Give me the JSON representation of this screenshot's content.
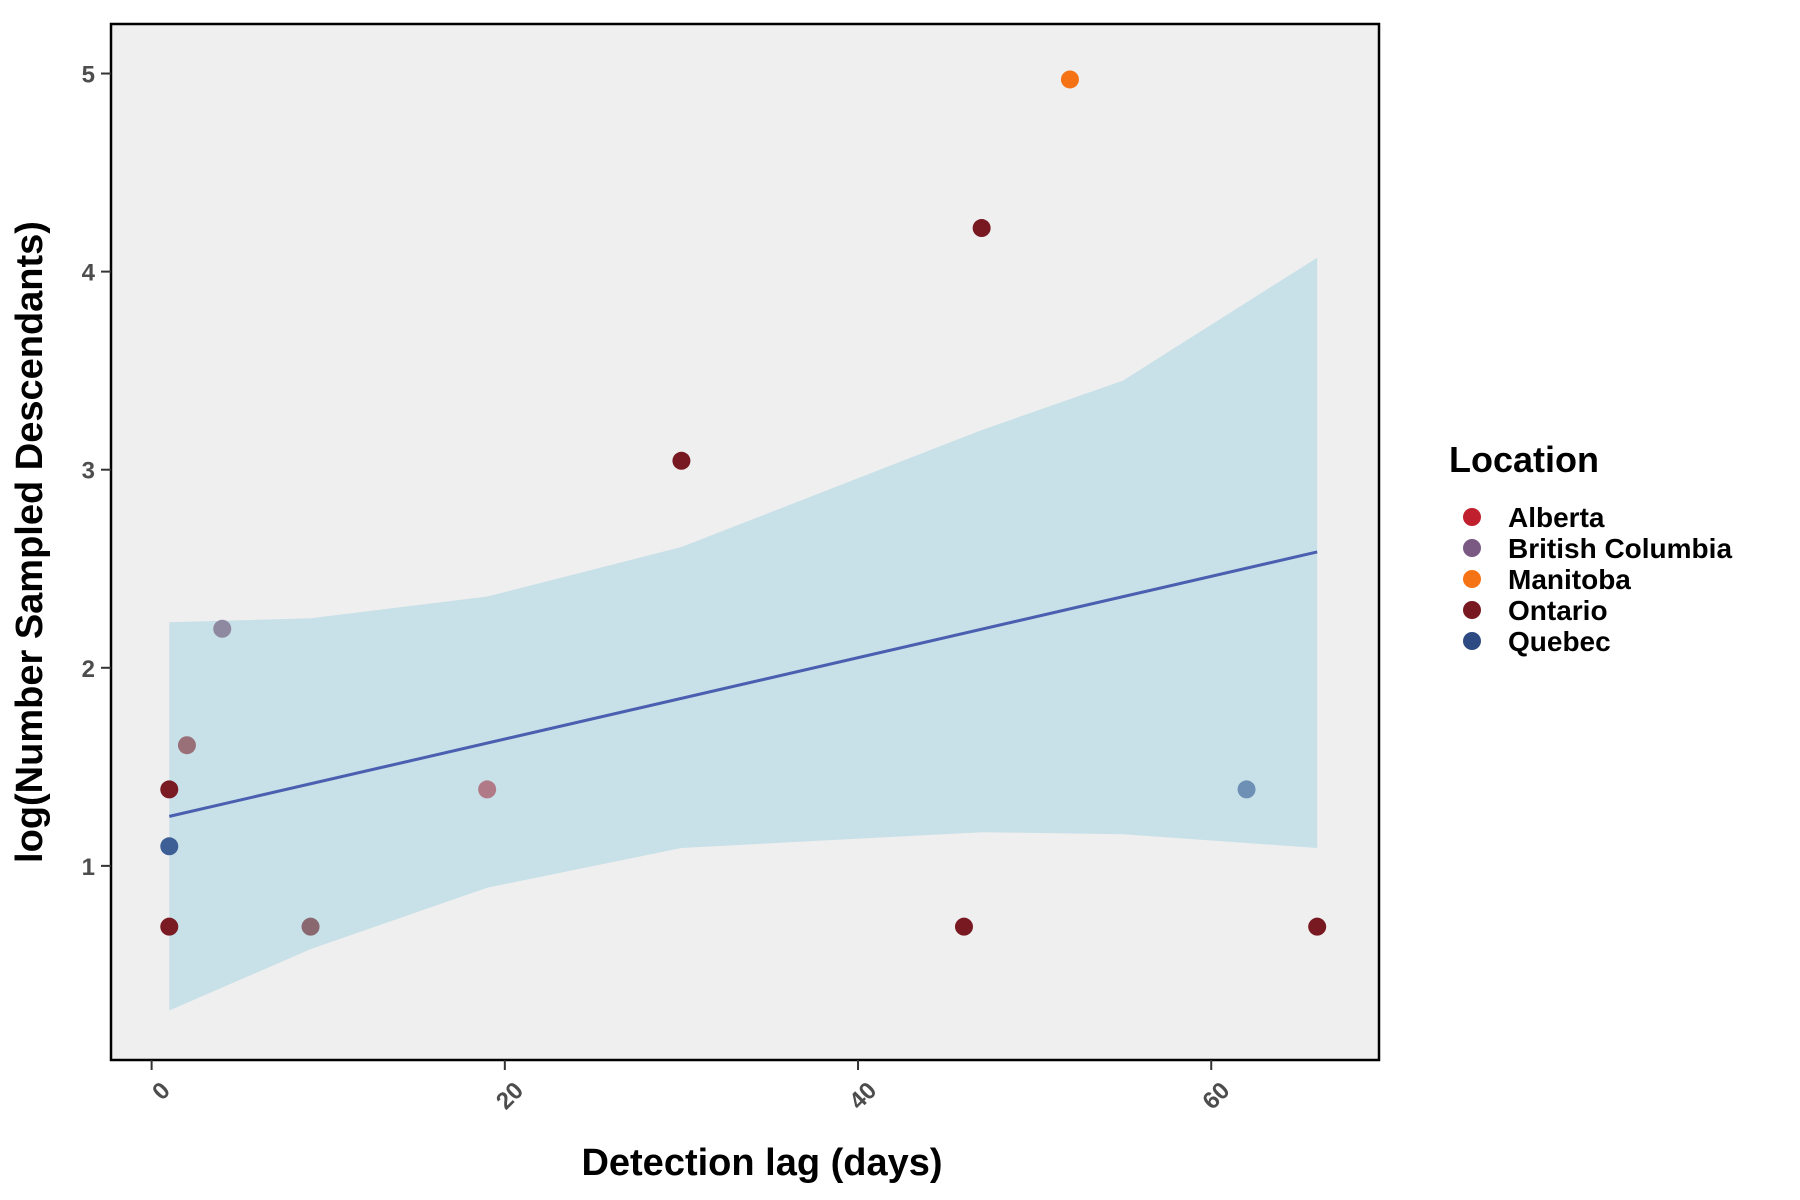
{
  "chart_data": {
    "type": "scatter",
    "title": "",
    "xlabel": "Detection lag (days)",
    "ylabel": "log(Number Sampled Descendants)",
    "xlim": [
      -2.3,
      69.5
    ],
    "ylim": [
      0.02,
      5.25
    ],
    "x_ticks": [
      0,
      20,
      40,
      60
    ],
    "y_ticks": [
      1,
      2,
      3,
      4,
      5
    ],
    "grid": false,
    "background_color": "#efefef",
    "legend": {
      "title": "Location",
      "position": "right",
      "entries": [
        {
          "label": "Alberta",
          "color": "#c0202e"
        },
        {
          "label": "British Columbia",
          "color": "#7a5a82"
        },
        {
          "label": "Manitoba",
          "color": "#f57314"
        },
        {
          "label": "Ontario",
          "color": "#781820"
        },
        {
          "label": "Quebec",
          "color": "#2e4a82"
        }
      ]
    },
    "points": [
      {
        "x": 1,
        "y": 1.386,
        "color": "#7a1a22"
      },
      {
        "x": 1,
        "y": 1.099,
        "color": "#3e5e96"
      },
      {
        "x": 1,
        "y": 0.693,
        "color": "#7a1a22"
      },
      {
        "x": 2,
        "y": 1.609,
        "color": "#9a7078"
      },
      {
        "x": 4,
        "y": 2.197,
        "color": "#8e88a0"
      },
      {
        "x": 9,
        "y": 0.693,
        "color": "#8a6870"
      },
      {
        "x": 19,
        "y": 1.386,
        "color": "#b07a86"
      },
      {
        "x": 30,
        "y": 3.045,
        "color": "#781820"
      },
      {
        "x": 46,
        "y": 0.693,
        "color": "#781820"
      },
      {
        "x": 47,
        "y": 4.22,
        "color": "#781820"
      },
      {
        "x": 52,
        "y": 4.97,
        "color": "#f57314"
      },
      {
        "x": 62,
        "y": 1.386,
        "color": "#6e90b4"
      },
      {
        "x": 66,
        "y": 0.693,
        "color": "#781820"
      }
    ],
    "fit_line": {
      "color": "#4a5fb0",
      "x": [
        1,
        66
      ],
      "y": [
        1.25,
        2.585
      ]
    },
    "confidence_band": {
      "color": "#c8e0e8",
      "x": [
        1,
        9,
        19,
        30,
        47,
        55,
        66
      ],
      "upper": [
        2.23,
        2.25,
        2.36,
        2.61,
        3.2,
        3.45,
        4.07
      ],
      "lower": [
        0.27,
        0.58,
        0.89,
        1.09,
        1.17,
        1.16,
        1.09
      ]
    }
  }
}
